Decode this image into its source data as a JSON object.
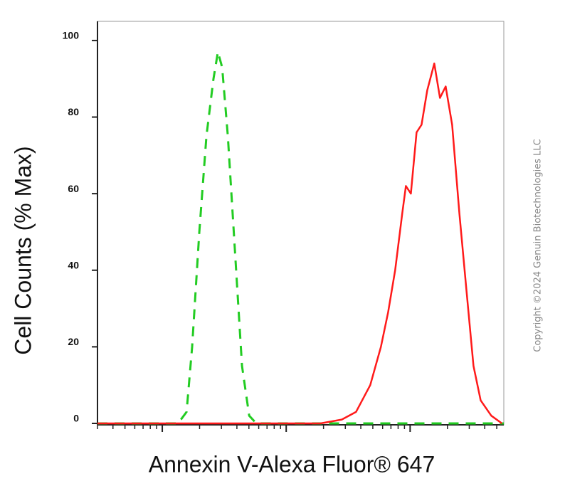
{
  "chart_data": {
    "type": "line",
    "ylabel": "Cell Counts (% Max)",
    "xlabel": "Annexin V-Alexa Fluor® 647",
    "watermark": "Copyright ©2024 Genuin Biotechnologies LLC",
    "xscale": "log",
    "xlim": [
      30,
      57000
    ],
    "xticks": [
      100,
      1000,
      10000
    ],
    "ylim": [
      0,
      105
    ],
    "yticks": [
      0,
      20,
      40,
      60,
      80,
      100
    ],
    "series": [
      {
        "color": "#22cc22",
        "dashed": true,
        "x": [
          30,
          134,
          157,
          174,
          199,
          227,
          259,
          281,
          304,
          338,
          386,
          440,
          503,
          574,
          57000
        ],
        "values": [
          0,
          0,
          3,
          20,
          50,
          75,
          90,
          97,
          93,
          75,
          45,
          15,
          2,
          0,
          0
        ]
      },
      {
        "color": "#ff1a1a",
        "dashed": false,
        "x": [
          30,
          1888,
          2807,
          3656,
          4764,
          5808,
          6637,
          7568,
          8647,
          9247,
          10140,
          11270,
          12360,
          13740,
          15670,
          17420,
          19360,
          21830,
          24940,
          28440,
          32440,
          37070,
          45190,
          55080
        ],
        "values": [
          0,
          0,
          1,
          3,
          10,
          20,
          29,
          40,
          55,
          62,
          60,
          76,
          78,
          87,
          94,
          85,
          88,
          78,
          55,
          35,
          15,
          6,
          2,
          0
        ]
      }
    ]
  }
}
